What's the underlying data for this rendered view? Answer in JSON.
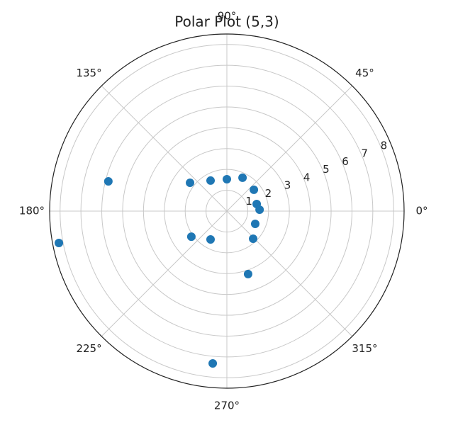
{
  "chart_data": {
    "type": "polar-scatter",
    "title": "Polar Plot (5,3)",
    "x": [
      165.9,
      190.75,
      142.4,
      118.1,
      90,
      64.9,
      38.3,
      13.4,
      2.5,
      335.8,
      313.5,
      288.6,
      264.7,
      240.1,
      215.8
    ],
    "values": [
      5.86,
      8.2,
      2.23,
      1.66,
      1.53,
      1.77,
      1.65,
      1.47,
      1.57,
      1.49,
      1.83,
      3.19,
      7.34,
      1.57,
      2.1
    ],
    "color": "#1f77b4",
    "xlim": [
      0,
      360
    ],
    "xticks": [
      {
        "value": 0,
        "label": "0°"
      },
      {
        "value": 45,
        "label": "45°"
      },
      {
        "value": 90,
        "label": "90°"
      },
      {
        "value": 135,
        "label": "135°"
      },
      {
        "value": 180,
        "label": "180°"
      },
      {
        "value": 225,
        "label": "225°"
      },
      {
        "value": 270,
        "label": "270°"
      },
      {
        "value": 315,
        "label": "315°"
      }
    ],
    "ylim": [
      0,
      8.5
    ],
    "yticks": [
      1,
      2,
      3,
      4,
      5,
      6,
      7,
      8
    ],
    "grid": true
  }
}
